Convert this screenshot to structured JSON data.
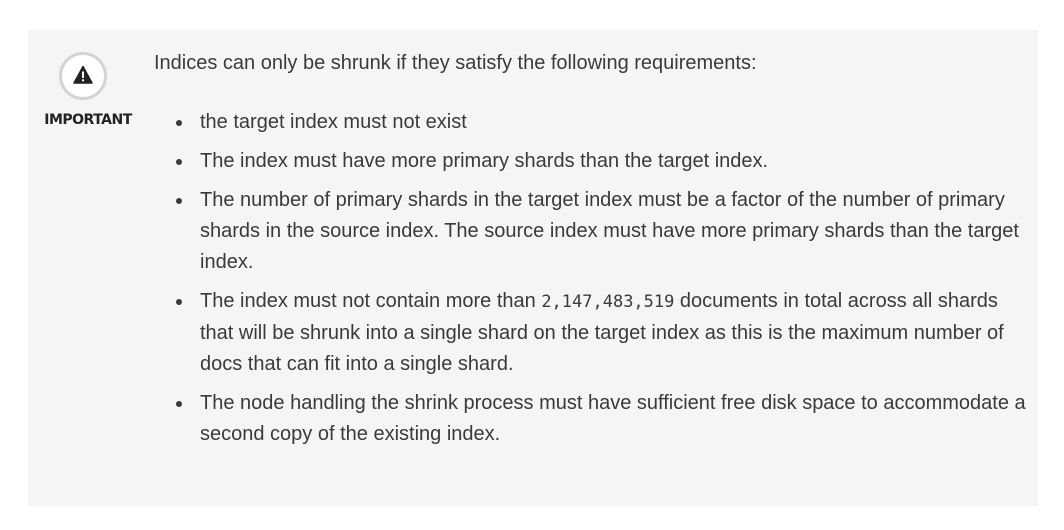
{
  "callout": {
    "label": "IMPORTANT",
    "icon": "warning-triangle-icon",
    "intro": "Indices can only be shrunk if they satisfy the following requirements:",
    "requirements": [
      {
        "text": "the target index must not exist"
      },
      {
        "text": "The index must have more primary shards than the target index."
      },
      {
        "text": "The number of primary shards in the target index must be a factor of the number of primary shards in the source index. The source index must have more primary shards than the target index."
      },
      {
        "before": "The index must not contain more than ",
        "code": "2,147,483,519",
        "after": " documents in total across all shards that will be shrunk into a single shard on the target index as this is the maximum number of docs that can fit into a single shard."
      },
      {
        "text": "The node handling the shrink process must have sufficient free disk space to accommodate a second copy of the existing index."
      }
    ]
  }
}
